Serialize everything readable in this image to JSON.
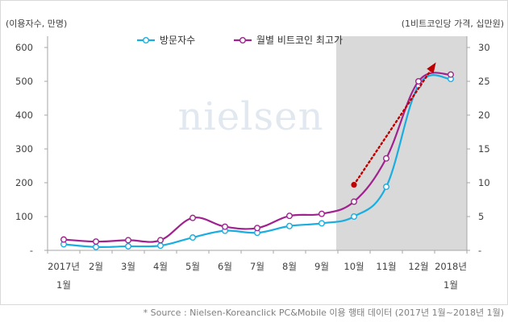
{
  "chart_data": {
    "type": "line",
    "categories": [
      "2017년 1월",
      "2월",
      "3월",
      "4월",
      "5월",
      "6월",
      "7월",
      "8월",
      "9월",
      "10월",
      "11월",
      "12월",
      "2018년 1월"
    ],
    "category_lines": [
      [
        "2017년",
        "1월"
      ],
      [
        "2월"
      ],
      [
        "3월"
      ],
      [
        "4월"
      ],
      [
        "5월"
      ],
      [
        "6월"
      ],
      [
        "7월"
      ],
      [
        "8월"
      ],
      [
        "9월"
      ],
      [
        "10월"
      ],
      [
        "11월"
      ],
      [
        "12월"
      ],
      [
        "2018년",
        "1월"
      ]
    ],
    "left_axis": {
      "label": "(이용자수, 만명)",
      "ylim": [
        0,
        600
      ],
      "ticks": [
        "-",
        "100",
        "200",
        "300",
        "400",
        "500",
        "600"
      ]
    },
    "right_axis": {
      "label": "(1비트코인당 가격, 십만원)",
      "ylim": [
        0,
        30
      ],
      "ticks": [
        "-",
        "5",
        "10",
        "15",
        "20",
        "25",
        "30"
      ]
    },
    "series": [
      {
        "name": "방문자수",
        "axis": "left",
        "color": "#1aaee0",
        "values": [
          18,
          10,
          12,
          14,
          38,
          58,
          52,
          72,
          80,
          100,
          188,
          488,
          507
        ]
      },
      {
        "name": "월별 비트코인 최고가",
        "axis": "right",
        "color": "#a0228f",
        "values": [
          1.6,
          1.3,
          1.5,
          1.5,
          4.8,
          3.5,
          3.3,
          5.1,
          5.4,
          7.2,
          13.6,
          25.0,
          26.0
        ]
      }
    ],
    "highlight": {
      "from_index": 9,
      "to_index": 12,
      "color": "#d9d9d9"
    },
    "trend_arrow": {
      "from": {
        "index": 9,
        "value": 9.7
      },
      "to": {
        "index": 11.5,
        "value": 27.5
      },
      "axis": "right",
      "color": "#c00000"
    },
    "watermark": "nielsen",
    "grid": false,
    "legend_position": "top-center"
  },
  "footer": {
    "source": "* Source : Nielsen-Koreanclick  PC&Mobile  이용 행태 데이터 (2017년 1월~2018년 1월)"
  }
}
